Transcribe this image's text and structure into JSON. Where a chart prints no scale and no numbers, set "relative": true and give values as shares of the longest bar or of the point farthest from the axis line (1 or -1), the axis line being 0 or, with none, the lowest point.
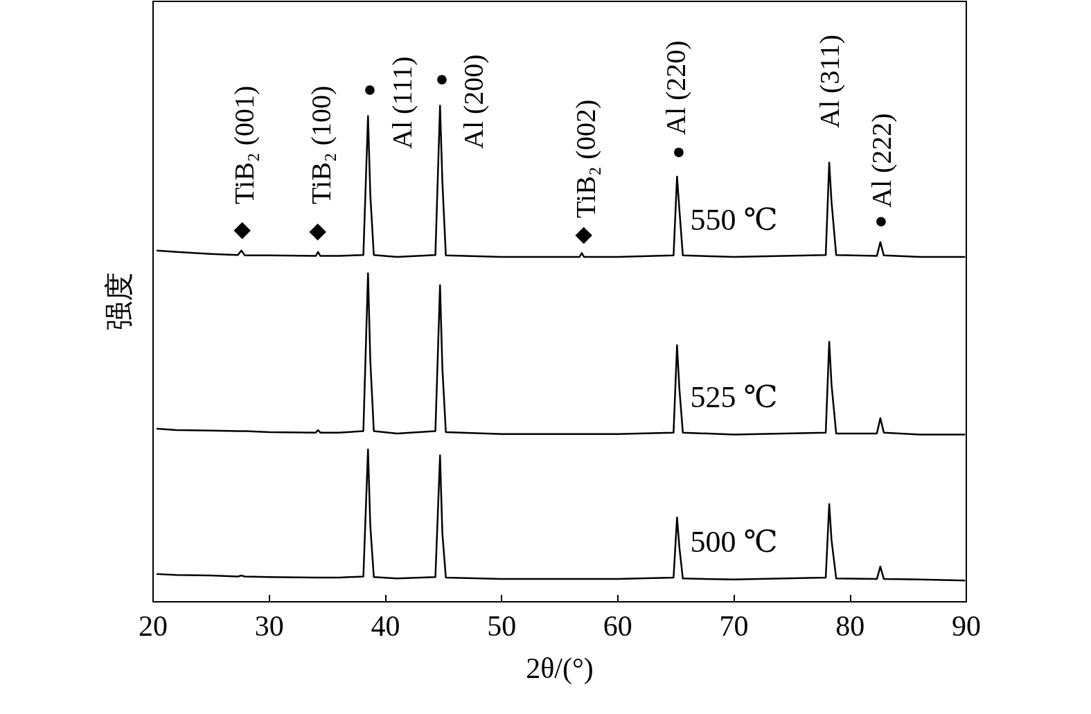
{
  "chart_data": {
    "type": "line",
    "relative": true,
    "xlabel": "2θ/(°)",
    "ylabel": "强度",
    "xlim": [
      20,
      90
    ],
    "xticks": [
      20,
      30,
      40,
      50,
      60,
      70,
      80,
      90
    ],
    "marker": "none",
    "line_style": "solid",
    "x": [
      20.3,
      22,
      25,
      27.3,
      27.6,
      27.9,
      30,
      34.0,
      34.2,
      34.4,
      36,
      38.1,
      38.5,
      38.7,
      39.0,
      41,
      44.3,
      44.7,
      44.9,
      45.2,
      50,
      56.7,
      56.9,
      57.1,
      60,
      64.8,
      65.1,
      65.3,
      65.6,
      70,
      77.9,
      78.2,
      78.4,
      78.8,
      82.3,
      82.6,
      82.9,
      86,
      89.9
    ],
    "series": [
      {
        "name": "550 ℃",
        "color": "#000000",
        "values": [
          0.708,
          0.705,
          0.701,
          0.699,
          0.708,
          0.698,
          0.698,
          0.697,
          0.705,
          0.697,
          0.697,
          0.699,
          0.979,
          0.819,
          0.699,
          0.695,
          0.699,
          1,
          0.847,
          0.698,
          0.695,
          0.695,
          0.703,
          0.695,
          0.695,
          0.698,
          0.857,
          0.791,
          0.698,
          0.695,
          0.699,
          0.885,
          0.805,
          0.699,
          0.697,
          0.725,
          0.698,
          0.695,
          0.695
        ]
      },
      {
        "name": "525 ℃",
        "color": "#000000",
        "values": [
          0.349,
          0.346,
          0.345,
          0.344,
          0.344,
          0.344,
          0.342,
          0.341,
          0.346,
          0.341,
          0.341,
          0.344,
          0.662,
          0.485,
          0.344,
          0.339,
          0.344,
          0.638,
          0.471,
          0.342,
          0.338,
          0.338,
          0.338,
          0.338,
          0.338,
          0.341,
          0.517,
          0.43,
          0.341,
          0.337,
          0.341,
          0.524,
          0.437,
          0.339,
          0.339,
          0.37,
          0.341,
          0.337,
          0.337
        ]
      },
      {
        "name": "500 ℃",
        "color": "#000000",
        "values": [
          0.056,
          0.054,
          0.053,
          0.051,
          0.053,
          0.051,
          0.05,
          0.049,
          0.049,
          0.049,
          0.049,
          0.051,
          0.307,
          0.152,
          0.05,
          0.047,
          0.05,
          0.295,
          0.138,
          0.049,
          0.046,
          0.046,
          0.046,
          0.046,
          0.046,
          0.049,
          0.17,
          0.11,
          0.047,
          0.045,
          0.049,
          0.197,
          0.124,
          0.047,
          0.046,
          0.071,
          0.046,
          0.045,
          0.043
        ]
      }
    ],
    "annotations": [
      "◆",
      "TiB₂ (001)",
      "◆",
      "TiB₂ (100)",
      "●",
      "Al (111)",
      "●",
      "Al (200)",
      "◆",
      "TiB₂ (002)",
      "●",
      "Al (220)",
      "Al (311)",
      "●",
      "Al (222)"
    ]
  }
}
